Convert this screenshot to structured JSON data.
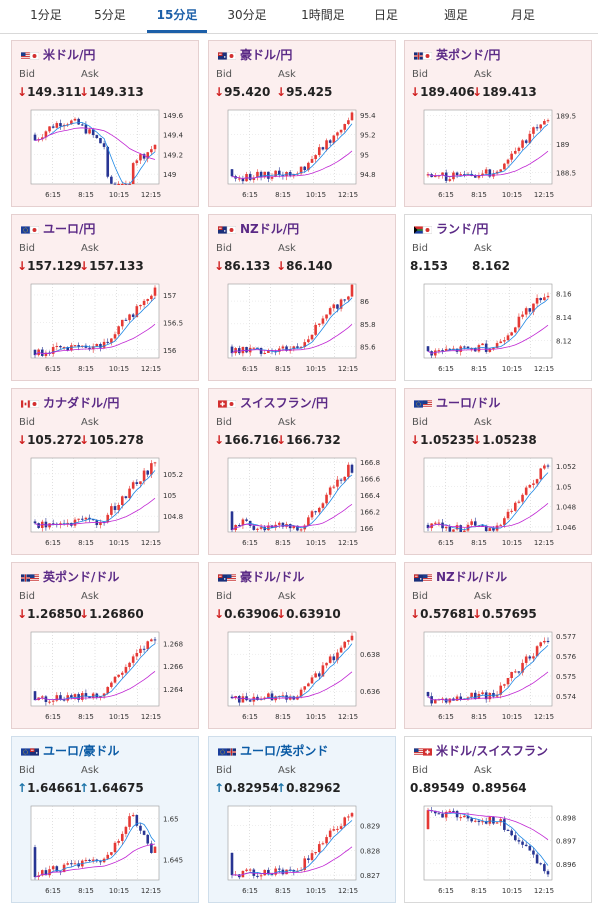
{
  "tabs": [
    {
      "label": "1分足",
      "active": false
    },
    {
      "label": "5分足",
      "active": false
    },
    {
      "label": "15分足",
      "active": true
    },
    {
      "label": "30分足",
      "active": false
    },
    {
      "label": "1時間足",
      "active": false
    },
    {
      "label": "日足",
      "active": false
    },
    {
      "label": "週足",
      "active": false
    },
    {
      "label": "月足",
      "active": false
    }
  ],
  "labels": {
    "bid": "Bid",
    "ask": "Ask"
  },
  "x_ticks": [
    "6:15",
    "8:15",
    "10:15",
    "12:15"
  ],
  "colors": {
    "up": "#e53935",
    "down": "#283593",
    "ma1": "#1e88e5",
    "ma2": "#c026d3",
    "arrow_down": "#d02020",
    "arrow_up": "#1a73a8"
  },
  "cards": [
    {
      "pair": "米ドル/円",
      "flag": "us-jp",
      "bg": "pink",
      "bid": "149.311",
      "ask": "149.313",
      "dir": "down",
      "arrow": "↓",
      "y_ticks": [
        "149.6",
        "149.4",
        "149.2",
        "149"
      ],
      "yr": [
        148.9,
        149.65
      ],
      "start": 149.4,
      "end": 149.3,
      "shape": "vdip"
    },
    {
      "pair": "豪ドル/円",
      "flag": "au-jp",
      "bg": "pink",
      "bid": "95.420",
      "ask": "95.425",
      "dir": "down",
      "arrow": "↓",
      "y_ticks": [
        "95.4",
        "95.2",
        "95",
        "94.8"
      ],
      "yr": [
        94.7,
        95.45
      ],
      "start": 94.85,
      "end": 95.42,
      "shape": "rise"
    },
    {
      "pair": "英ポンド/円",
      "flag": "gb-jp",
      "bg": "pink",
      "bid": "189.406",
      "ask": "189.413",
      "dir": "down",
      "arrow": "↓",
      "y_ticks": [
        "189.5",
        "189",
        "188.5"
      ],
      "yr": [
        188.3,
        189.6
      ],
      "start": 188.45,
      "end": 189.4,
      "shape": "rise"
    },
    {
      "pair": "ユーロ/円",
      "flag": "eu-jp",
      "bg": "pink",
      "bid": "157.129",
      "ask": "157.133",
      "dir": "down",
      "arrow": "↓",
      "y_ticks": [
        "157",
        "156.5",
        "156"
      ],
      "yr": [
        155.85,
        157.2
      ],
      "start": 156.0,
      "end": 157.1,
      "shape": "rise"
    },
    {
      "pair": "NZドル/円",
      "flag": "nz-jp",
      "bg": "pink",
      "bid": "86.133",
      "ask": "86.140",
      "dir": "down",
      "arrow": "↓",
      "y_ticks": [
        "86",
        "85.8",
        "85.6"
      ],
      "yr": [
        85.5,
        86.15
      ],
      "start": 85.6,
      "end": 86.12,
      "shape": "rise"
    },
    {
      "pair": "ランド/円",
      "flag": "za-jp",
      "bg": "white",
      "bid": "8.153",
      "ask": "8.162",
      "dir": "none",
      "arrow": "",
      "y_ticks": [
        "8.16",
        "8.14",
        "8.12"
      ],
      "yr": [
        8.105,
        8.168
      ],
      "start": 8.115,
      "end": 8.155,
      "shape": "rise"
    },
    {
      "pair": "カナダドル/円",
      "flag": "ca-jp",
      "bg": "pink",
      "bid": "105.272",
      "ask": "105.278",
      "dir": "down",
      "arrow": "↓",
      "y_ticks": [
        "105.2",
        "105",
        "104.8"
      ],
      "yr": [
        104.65,
        105.35
      ],
      "start": 104.75,
      "end": 105.27,
      "shape": "rise"
    },
    {
      "pair": "スイスフラン/円",
      "flag": "ch-jp",
      "bg": "pink",
      "bid": "166.716",
      "ask": "166.732",
      "dir": "down",
      "arrow": "↓",
      "y_ticks": [
        "166.8",
        "166.6",
        "166.4",
        "166.2",
        "166"
      ],
      "yr": [
        165.95,
        166.85
      ],
      "start": 166.2,
      "end": 166.72,
      "shape": "flatrise"
    },
    {
      "pair": "ユーロ/ドル",
      "flag": "eu-us",
      "bg": "pink",
      "bid": "1.05235",
      "ask": "1.05238",
      "dir": "down",
      "arrow": "↓",
      "y_ticks": [
        "1.052",
        "1.05",
        "1.048",
        "1.046"
      ],
      "yr": [
        1.0455,
        1.0528
      ],
      "start": 1.0462,
      "end": 1.0523,
      "shape": "flatrise"
    },
    {
      "pair": "英ポンド/ドル",
      "flag": "gb-us",
      "bg": "pink",
      "bid": "1.26850",
      "ask": "1.26860",
      "dir": "down",
      "arrow": "↓",
      "y_ticks": [
        "1.268",
        "1.266",
        "1.264"
      ],
      "yr": [
        1.2625,
        1.269
      ],
      "start": 1.2638,
      "end": 1.2685,
      "shape": "rise"
    },
    {
      "pair": "豪ドル/ドル",
      "flag": "au-us",
      "bg": "pink",
      "bid": "0.63906",
      "ask": "0.63910",
      "dir": "down",
      "arrow": "↓",
      "y_ticks": [
        "0.638",
        "0.636"
      ],
      "yr": [
        0.6352,
        0.6392
      ],
      "start": 0.6357,
      "end": 0.6391,
      "shape": "rise"
    },
    {
      "pair": "NZドル/ドル",
      "flag": "nz-us",
      "bg": "pink",
      "bid": "0.57681",
      "ask": "0.57695",
      "dir": "down",
      "arrow": "↓",
      "y_ticks": [
        "0.577",
        "0.576",
        "0.575",
        "0.574"
      ],
      "yr": [
        0.5735,
        0.5772
      ],
      "start": 0.5742,
      "end": 0.5768,
      "shape": "rise"
    },
    {
      "pair": "ユーロ/豪ドル",
      "flag": "eu-au",
      "bg": "blue",
      "bid": "1.64661",
      "ask": "1.64675",
      "dir": "up",
      "arrow": "↑",
      "y_ticks": [
        "1.65",
        "1.645"
      ],
      "yr": [
        1.6425,
        1.6515
      ],
      "start": 1.6465,
      "end": 1.6466,
      "shape": "hump"
    },
    {
      "pair": "ユーロ/英ポンド",
      "flag": "eu-gb",
      "bg": "blue",
      "bid": "0.82954",
      "ask": "0.82962",
      "dir": "up",
      "arrow": "↑",
      "y_ticks": [
        "0.829",
        "0.828",
        "0.827"
      ],
      "yr": [
        0.8268,
        0.8298
      ],
      "start": 0.8279,
      "end": 0.8295,
      "shape": "rise"
    },
    {
      "pair": "米ドル/スイスフラン",
      "flag": "us-ch",
      "bg": "white",
      "bid": "0.89549",
      "ask": "0.89564",
      "dir": "none",
      "arrow": "",
      "y_ticks": [
        "0.898",
        "0.897",
        "0.896"
      ],
      "yr": [
        0.8953,
        0.8985
      ],
      "start": 0.8975,
      "end": 0.8955,
      "shape": "fall"
    }
  ]
}
